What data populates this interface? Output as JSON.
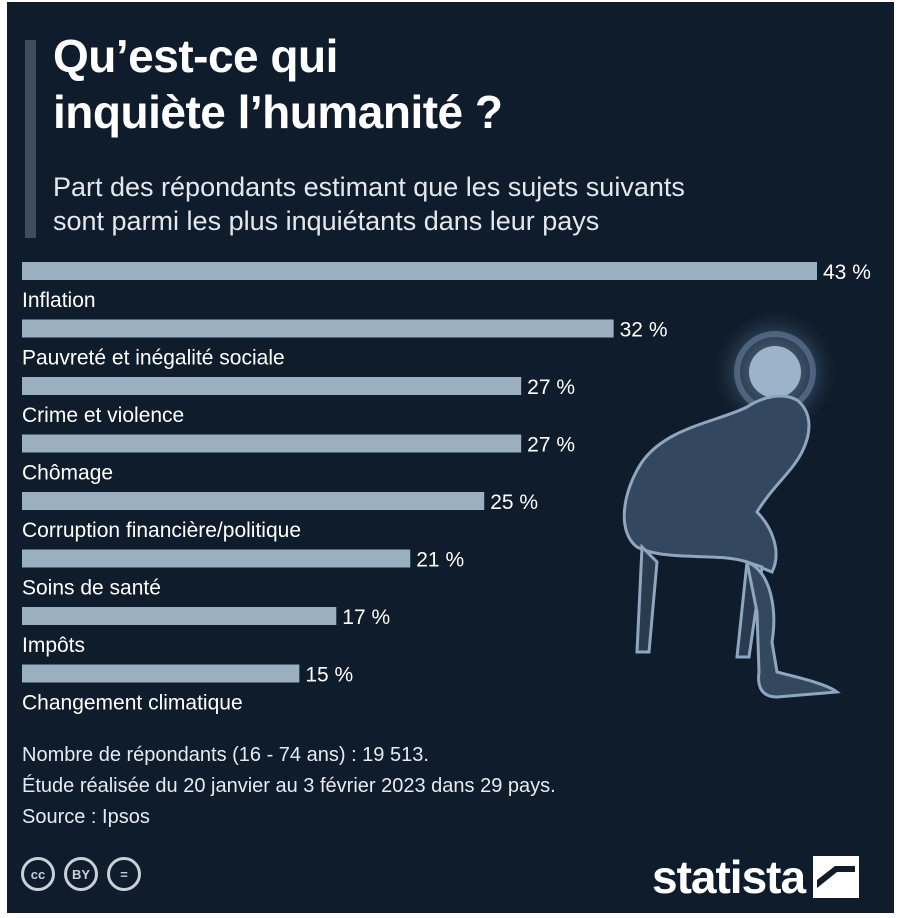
{
  "title": "Qu’est-ce qui inquiète l’humanité ?",
  "subtitle": "Part des répondants estimant que les sujets suivants sont parmi les plus inquiétants dans leur pays",
  "chart_data": {
    "type": "bar",
    "orientation": "horizontal",
    "categories": [
      "Inflation",
      "Pauvreté et inégalité sociale",
      "Crime et violence",
      "Chômage",
      "Corruption financière/politique",
      "Soins de santé",
      "Impôts",
      "Changement climatique"
    ],
    "values": [
      43,
      32,
      27,
      27,
      25,
      21,
      17,
      15
    ],
    "value_labels": [
      "43 %",
      "32 %",
      "27 %",
      "27 %",
      "25 %",
      "21 %",
      "17 %",
      "15 %"
    ],
    "unit": "%",
    "title": "Qu’est-ce qui inquiète l’humanité ?",
    "subtitle": "Part des répondants estimant que les sujets suivants sont parmi les plus inquiétants dans leur pays",
    "xlim": [
      0,
      43
    ],
    "grid": false,
    "bar_color": "#9bafc0"
  },
  "notes": {
    "respondents": "Nombre de répondants (16 - 74 ans) : 19 513.",
    "study": "Étude réalisée du 20 janvier au 3 février 2023 dans 29 pays.",
    "source": "Source : Ipsos"
  },
  "license": {
    "cc": "cc",
    "by": "BY",
    "nd": "="
  },
  "brand": {
    "name": "statista"
  },
  "icons": [
    "worried-person-icon",
    "cc-license-icon",
    "attribution-icon",
    "no-derivatives-icon",
    "statista-logo-icon"
  ],
  "colors": {
    "background": "#0f1c2c",
    "bar": "#9bafc0",
    "text": "#ffffff",
    "accent": "#3c4b5e"
  }
}
